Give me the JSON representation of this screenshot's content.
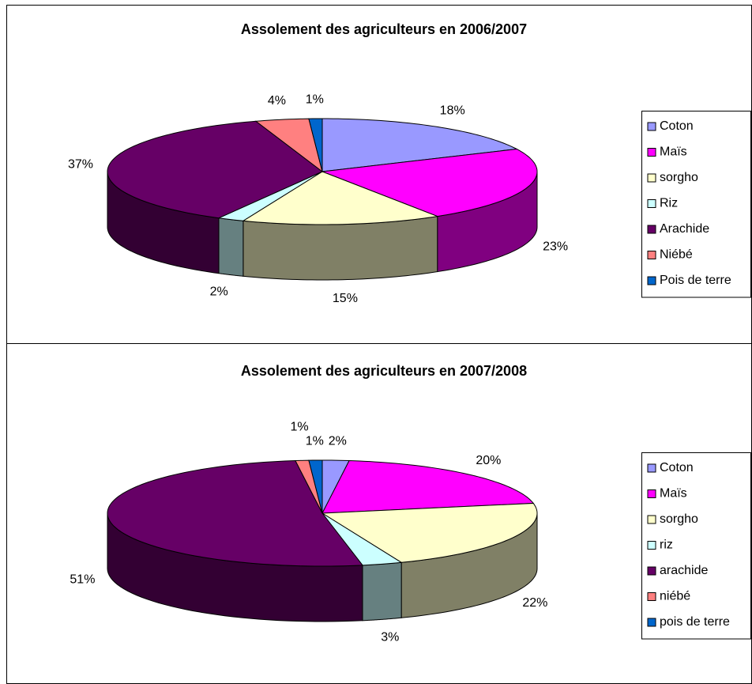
{
  "chart_data": [
    {
      "type": "pie3d",
      "title": "Assolement des agriculteurs en 2006/2007",
      "categories": [
        "Coton",
        "Maïs",
        "sorgho",
        "Riz",
        "Arachide",
        "Niébé",
        "Pois de terre"
      ],
      "values": [
        18,
        23,
        15,
        2,
        37,
        4,
        1
      ],
      "value_labels": [
        "18%",
        "23%",
        "15%",
        "2%",
        "37%",
        "4%",
        "1%"
      ],
      "colors": [
        "#9999ff",
        "#ff00ff",
        "#ffffcc",
        "#ccffff",
        "#660066",
        "#ff8080",
        "#0066cc"
      ],
      "legend": "right"
    },
    {
      "type": "pie3d",
      "title": "Assolement des agriculteurs en 2007/2008",
      "categories": [
        "Coton",
        "Maïs",
        "sorgho",
        "riz",
        "arachide",
        "niébé",
        "pois de terre"
      ],
      "values": [
        2,
        20,
        22,
        3,
        51,
        1,
        1
      ],
      "value_labels": [
        "2%",
        "20%",
        "22%",
        "3%",
        "51%",
        "1%",
        "1%"
      ],
      "colors": [
        "#9999ff",
        "#ff00ff",
        "#ffffcc",
        "#ccffff",
        "#660066",
        "#ff8080",
        "#0066cc"
      ],
      "legend": "right"
    }
  ]
}
